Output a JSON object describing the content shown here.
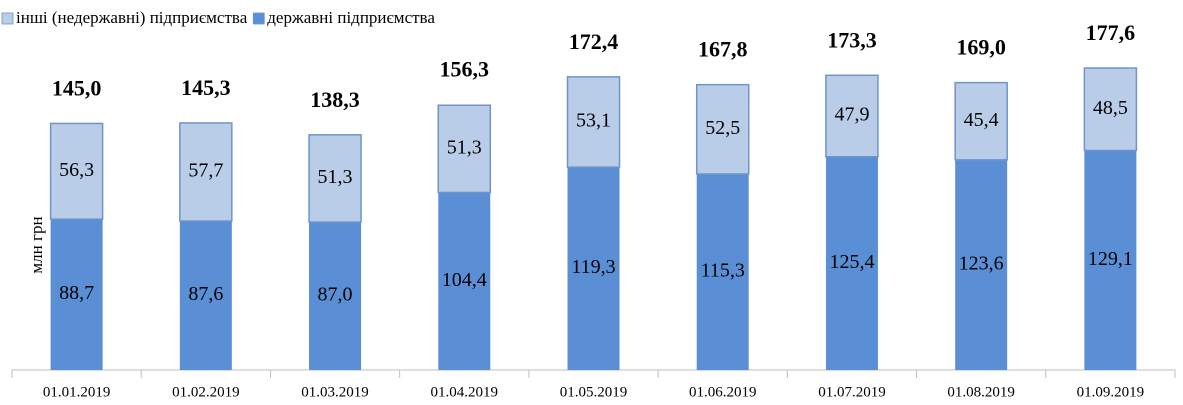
{
  "chart_data": {
    "type": "stacked_bar",
    "y_label": "млн грн",
    "categories": [
      "01.01.2019",
      "01.02.2019",
      "01.03.2019",
      "01.04.2019",
      "01.05.2019",
      "01.06.2019",
      "01.07.2019",
      "01.08.2019",
      "01.09.2019"
    ],
    "series": [
      {
        "name": "інші (недержавні) підприємства",
        "color": "#b9cde8",
        "values": [
          56.3,
          57.7,
          51.3,
          51.3,
          53.1,
          52.5,
          47.9,
          45.4,
          48.5
        ],
        "value_labels": [
          "56,3",
          "57,7",
          "51,3",
          "51,3",
          "53,1",
          "52,5",
          "47,9",
          "45,4",
          "48,5"
        ]
      },
      {
        "name": "державні підприємства",
        "color": "#5a8fd6",
        "values": [
          88.7,
          87.6,
          87.0,
          104.4,
          119.3,
          115.3,
          125.4,
          123.6,
          129.1
        ],
        "value_labels": [
          "88,7",
          "87,6",
          "87,0",
          "104,4",
          "119,3",
          "115,3",
          "125,4",
          "123,6",
          "129,1"
        ]
      }
    ],
    "totals": {
      "values": [
        145.0,
        145.3,
        138.3,
        156.3,
        172.4,
        167.8,
        173.3,
        169.0,
        177.6
      ],
      "value_labels": [
        "145,0",
        "145,3",
        "138,3",
        "156,3",
        "172,4",
        "167,8",
        "173,3",
        "169,0",
        "177,6"
      ]
    }
  }
}
